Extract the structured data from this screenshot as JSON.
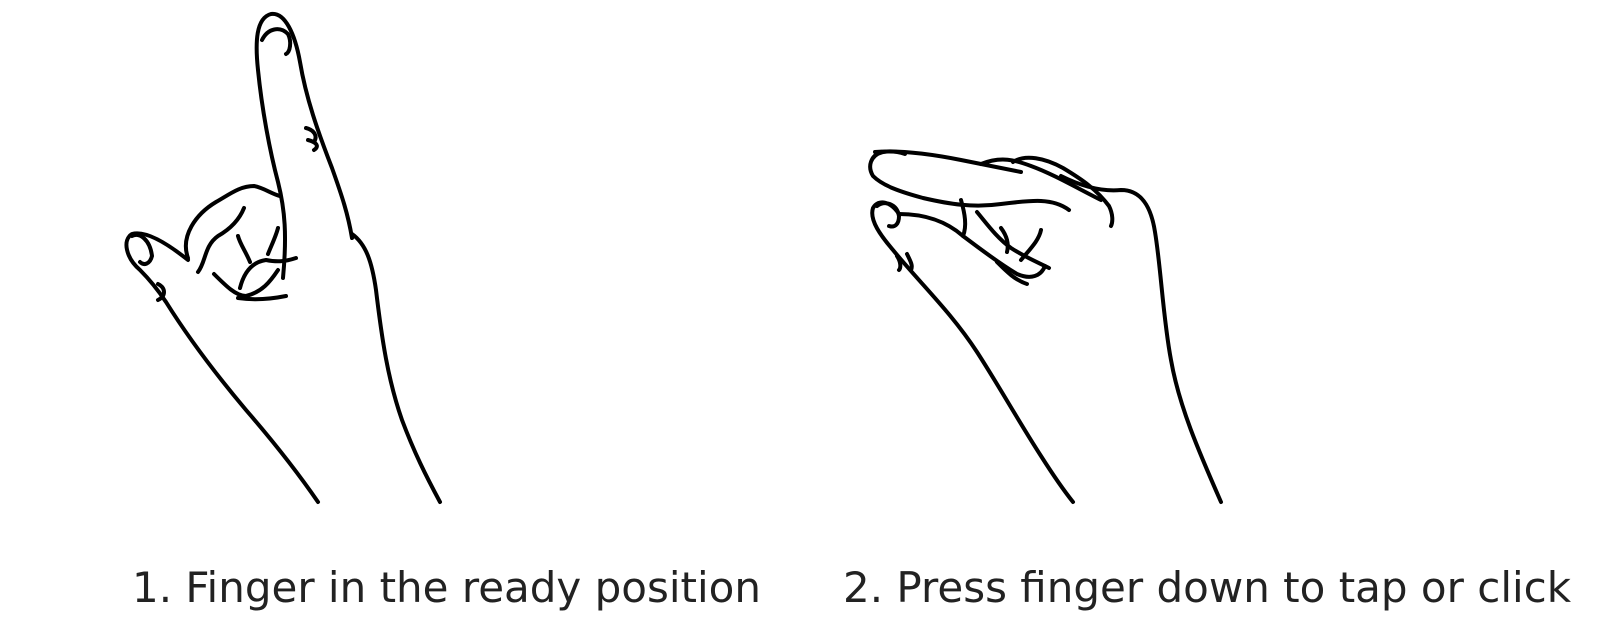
{
  "figure": {
    "steps": [
      {
        "caption": "1. Finger in the ready position",
        "icon": "hand-index-finger-raised-icon"
      },
      {
        "caption": "2. Press finger down to tap or click",
        "icon": "hand-finger-pressed-down-icon"
      }
    ],
    "colors": {
      "stroke": "#000000",
      "text": "#222222",
      "background": "#ffffff"
    }
  }
}
